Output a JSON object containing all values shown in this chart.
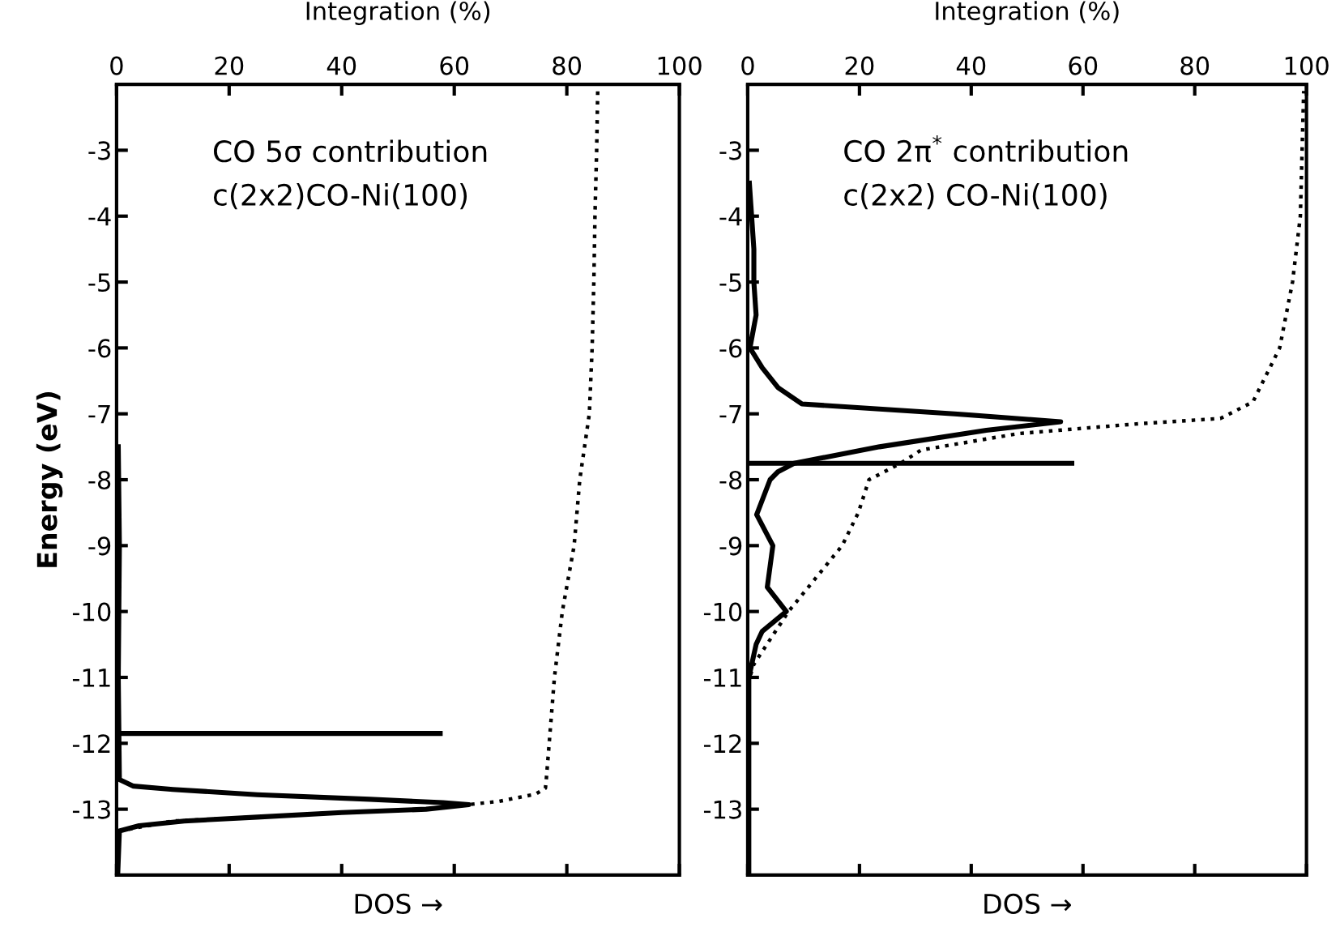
{
  "chart_data": [
    {
      "type": "line",
      "xlabel": "DOS →",
      "x2label": "Integration (%)",
      "ylabel": "Energy (eV)",
      "annotations": [
        "CO 5σ contribution",
        "c(2x2)CO-Ni(100)"
      ],
      "xlim": [
        0,
        100
      ],
      "ylim": [
        -14,
        -2
      ],
      "xticks": [
        0,
        20,
        40,
        60,
        80,
        100
      ],
      "yticks": [
        -3,
        -4,
        -5,
        -6,
        -7,
        -8,
        -9,
        -10,
        -11,
        -12,
        -13
      ],
      "series": [
        {
          "color": "#000000",
          "line_style": "solid",
          "x": [
            0,
            57.5
          ],
          "values": [
            -11.85,
            -11.85
          ]
        },
        {
          "color": "#000000",
          "line_style": "solid",
          "x": [
            0.3,
            0.5,
            0.3,
            0.5,
            3,
            10,
            25,
            45,
            58,
            62.6,
            55,
            40,
            25,
            12,
            4,
            0.5,
            0.2
          ],
          "values": [
            -7.5,
            -9,
            -11,
            -12.55,
            -12.65,
            -12.7,
            -12.78,
            -12.85,
            -12.9,
            -12.93,
            -13.0,
            -13.05,
            -13.12,
            -13.18,
            -13.25,
            -13.33,
            -14
          ]
        },
        {
          "color": "#000000",
          "line_style": "dotted",
          "x": [
            0.5,
            10,
            25,
            40,
            55,
            62.6,
            68,
            74.5,
            76.2,
            76.4,
            77.8,
            79.2,
            81.3,
            82.3,
            84,
            84.5,
            84.8,
            85,
            85.3,
            85.5
          ],
          "values": [
            -13.33,
            -13.18,
            -13.12,
            -13.05,
            -13.0,
            -12.93,
            -12.88,
            -12.77,
            -12.68,
            -12.5,
            -11,
            -10,
            -9,
            -8,
            -7,
            -6,
            -5,
            -4,
            -3,
            -2.05
          ]
        }
      ]
    },
    {
      "type": "line",
      "xlabel": "DOS →",
      "x2label": "Integration (%)",
      "annotations": [
        "CO 2π$^{*}$ contribution",
        "c(2x2) CO-Ni(100)"
      ],
      "xlim": [
        0,
        100
      ],
      "ylim": [
        -14,
        -2
      ],
      "xticks": [
        0,
        20,
        40,
        60,
        80,
        100
      ],
      "yticks": [
        -3,
        -4,
        -5,
        -6,
        -7,
        -8,
        -9,
        -10,
        -11,
        -12,
        -13
      ],
      "series": [
        {
          "color": "#000000",
          "line_style": "solid",
          "x": [
            0,
            58
          ],
          "values": [
            -7.75,
            -7.75
          ]
        },
        {
          "color": "#000000",
          "line_style": "solid",
          "x": [
            0.3,
            0.7,
            1.1,
            1.1,
            1.5,
            0.4,
            2.6,
            5.4,
            9.7,
            37,
            56,
            42.7,
            23.6,
            8.3,
            5.4,
            4.0,
            1.6,
            4.5,
            3.5,
            6.9,
            2.6,
            1.5,
            0.2,
            0.2
          ],
          "values": [
            -3.5,
            -4,
            -4.5,
            -5,
            -5.5,
            -6,
            -6.3,
            -6.6,
            -6.85,
            -7.0,
            -7.12,
            -7.25,
            -7.5,
            -7.75,
            -7.88,
            -8,
            -8.53,
            -9,
            -9.63,
            -10,
            -10.3,
            -10.5,
            -11,
            -14
          ]
        },
        {
          "color": "#000000",
          "line_style": "dotted",
          "x": [
            0,
            1.1,
            7.3,
            16.9,
            19.8,
            21.7,
            27.4,
            31,
            48.4,
            70,
            84.6,
            90.4,
            95.2,
            97.5,
            98.9,
            99.5
          ],
          "values": [
            -11.1,
            -10.8,
            -10,
            -9,
            -8.5,
            -8,
            -7.75,
            -7.55,
            -7.3,
            -7.15,
            -7.07,
            -6.82,
            -6,
            -5,
            -4,
            -2.1
          ]
        }
      ]
    }
  ]
}
